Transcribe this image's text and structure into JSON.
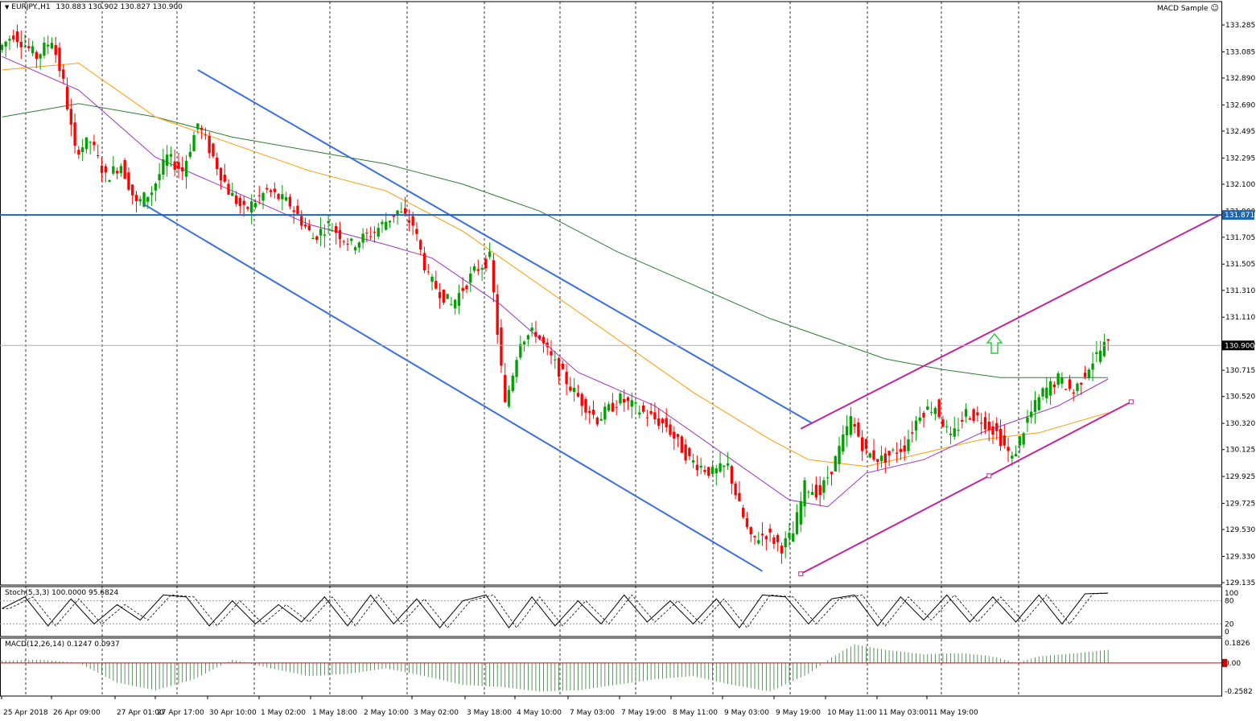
{
  "header": {
    "symbol": "EURJPY.,H1",
    "ohlc": "130.883 130.902 130.827 130.900",
    "expert": "MACD Sample"
  },
  "stoch": {
    "label": "Stoch(5,3,3) 100.0000 95.6824",
    "levels": [
      "100",
      "80",
      "20",
      "0"
    ]
  },
  "macd": {
    "label": "MACD(12,26,14) 0.1247 0.0937",
    "levels": [
      "0.1826",
      "0.00",
      "-0.2582"
    ]
  },
  "colors": {
    "bull": "#00a000",
    "bear": "#ff0000",
    "channel_down": "#3b6fe0",
    "channel_up": "#c0259a",
    "resistance": "#1c64b4",
    "ma_fast": "#9933cc",
    "ma_mid": "#ff9900",
    "ma_slow": "#2e7d32",
    "arrow": "#2ecc40"
  },
  "chart_data": {
    "type": "candlestick",
    "symbol": "EURJPY",
    "timeframe": "H1",
    "ylim": [
      129.135,
      133.285
    ],
    "y_ticks": [
      "133.285",
      "133.085",
      "132.890",
      "132.690",
      "132.495",
      "132.295",
      "132.100",
      "131.900",
      "131.705",
      "131.505",
      "131.310",
      "131.110",
      "130.910",
      "130.715",
      "130.520",
      "130.320",
      "130.125",
      "129.925",
      "129.725",
      "129.530",
      "129.330",
      "129.135"
    ],
    "x_ticks": [
      "25 Apr 2018",
      "26 Apr 09:00",
      "27 Apr 01:00",
      "27 Apr 17:00",
      "30 Apr 10:00",
      "1 May 02:00",
      "1 May 18:00",
      "2 May 10:00",
      "3 May 02:00",
      "3 May 18:00",
      "4 May 10:00",
      "7 May 03:00",
      "7 May 19:00",
      "8 May 11:00",
      "9 May 03:00",
      "9 May 19:00",
      "10 May 11:00",
      "11 May 03:00",
      "11 May 19:00"
    ],
    "price_marks": [
      {
        "label": "131.871",
        "value": 131.871,
        "kind": "resistance"
      },
      {
        "label": "130.900",
        "value": 130.9,
        "kind": "current"
      }
    ],
    "path_points": [
      [
        0,
        133.1
      ],
      [
        4,
        133.22
      ],
      [
        10,
        133.05
      ],
      [
        14,
        133.18
      ],
      [
        17,
        132.85
      ],
      [
        20,
        132.35
      ],
      [
        24,
        132.42
      ],
      [
        28,
        132.15
      ],
      [
        32,
        132.25
      ],
      [
        36,
        131.95
      ],
      [
        40,
        132.05
      ],
      [
        44,
        132.3
      ],
      [
        48,
        132.2
      ],
      [
        52,
        132.55
      ],
      [
        56,
        132.3
      ],
      [
        60,
        132.05
      ],
      [
        64,
        131.9
      ],
      [
        70,
        132.05
      ],
      [
        76,
        131.95
      ],
      [
        82,
        131.7
      ],
      [
        86,
        131.8
      ],
      [
        92,
        131.65
      ],
      [
        98,
        131.75
      ],
      [
        104,
        131.9
      ],
      [
        108,
        131.8
      ],
      [
        112,
        131.4
      ],
      [
        118,
        131.2
      ],
      [
        124,
        131.45
      ],
      [
        128,
        131.55
      ],
      [
        132,
        130.45
      ],
      [
        136,
        130.95
      ],
      [
        140,
        131.0
      ],
      [
        144,
        130.8
      ],
      [
        150,
        130.55
      ],
      [
        156,
        130.35
      ],
      [
        162,
        130.5
      ],
      [
        168,
        130.4
      ],
      [
        174,
        130.3
      ],
      [
        180,
        130.05
      ],
      [
        186,
        129.95
      ],
      [
        190,
        130.0
      ],
      [
        193,
        129.7
      ],
      [
        196,
        129.45
      ],
      [
        200,
        129.5
      ],
      [
        204,
        129.4
      ],
      [
        207,
        129.5
      ],
      [
        210,
        129.85
      ],
      [
        214,
        129.8
      ],
      [
        218,
        130.05
      ],
      [
        222,
        130.35
      ],
      [
        226,
        130.1
      ],
      [
        230,
        130.05
      ],
      [
        236,
        130.15
      ],
      [
        240,
        130.4
      ],
      [
        244,
        130.45
      ],
      [
        248,
        130.2
      ],
      [
        252,
        130.4
      ],
      [
        256,
        130.35
      ],
      [
        260,
        130.25
      ],
      [
        264,
        130.05
      ],
      [
        268,
        130.35
      ],
      [
        272,
        130.55
      ],
      [
        276,
        130.65
      ],
      [
        280,
        130.55
      ],
      [
        284,
        130.75
      ],
      [
        288,
        130.9
      ]
    ],
    "ma_fast": [
      [
        0,
        133.05
      ],
      [
        20,
        132.8
      ],
      [
        40,
        132.3
      ],
      [
        60,
        132.05
      ],
      [
        80,
        131.8
      ],
      [
        100,
        131.65
      ],
      [
        112,
        131.55
      ],
      [
        130,
        131.2
      ],
      [
        150,
        130.7
      ],
      [
        170,
        130.45
      ],
      [
        190,
        130.05
      ],
      [
        205,
        129.75
      ],
      [
        215,
        129.7
      ],
      [
        225,
        129.95
      ],
      [
        240,
        130.05
      ],
      [
        255,
        130.25
      ],
      [
        265,
        130.35
      ],
      [
        275,
        130.45
      ],
      [
        288,
        130.65
      ]
    ],
    "ma_mid": [
      [
        0,
        132.95
      ],
      [
        20,
        133.0
      ],
      [
        40,
        132.6
      ],
      [
        60,
        132.4
      ],
      [
        80,
        132.2
      ],
      [
        100,
        132.05
      ],
      [
        120,
        131.75
      ],
      [
        140,
        131.35
      ],
      [
        160,
        130.95
      ],
      [
        180,
        130.55
      ],
      [
        200,
        130.2
      ],
      [
        210,
        130.05
      ],
      [
        225,
        130.0
      ],
      [
        240,
        130.1
      ],
      [
        255,
        130.2
      ],
      [
        270,
        130.25
      ],
      [
        288,
        130.4
      ]
    ],
    "ma_slow": [
      [
        0,
        132.6
      ],
      [
        20,
        132.7
      ],
      [
        40,
        132.6
      ],
      [
        60,
        132.45
      ],
      [
        80,
        132.35
      ],
      [
        100,
        132.25
      ],
      [
        120,
        132.1
      ],
      [
        140,
        131.9
      ],
      [
        160,
        131.6
      ],
      [
        180,
        131.35
      ],
      [
        200,
        131.1
      ],
      [
        215,
        130.95
      ],
      [
        230,
        130.8
      ],
      [
        245,
        130.72
      ],
      [
        260,
        130.66
      ],
      [
        275,
        130.66
      ],
      [
        288,
        130.66
      ]
    ],
    "trendlines": [
      {
        "name": "falling-channel-upper",
        "from": [
          51,
          132.95
        ],
        "to": [
          211,
          130.32
        ]
      },
      {
        "name": "falling-channel-lower",
        "from": [
          37,
          131.95
        ],
        "to": [
          198,
          129.22
        ]
      },
      {
        "name": "rising-channel-upper",
        "from": [
          208,
          130.28
        ],
        "to": [
          317,
          131.87
        ]
      },
      {
        "name": "rising-channel-lower",
        "from": [
          208,
          129.2
        ],
        "to": [
          294,
          130.48
        ]
      }
    ],
    "stoch_series": [
      [
        0,
        60
      ],
      [
        6,
        90
      ],
      [
        12,
        15
      ],
      [
        18,
        85
      ],
      [
        24,
        20
      ],
      [
        30,
        70
      ],
      [
        36,
        30
      ],
      [
        42,
        95
      ],
      [
        48,
        90
      ],
      [
        54,
        15
      ],
      [
        60,
        80
      ],
      [
        66,
        20
      ],
      [
        72,
        70
      ],
      [
        78,
        25
      ],
      [
        84,
        90
      ],
      [
        90,
        15
      ],
      [
        96,
        95
      ],
      [
        102,
        20
      ],
      [
        108,
        85
      ],
      [
        114,
        10
      ],
      [
        120,
        80
      ],
      [
        126,
        95
      ],
      [
        132,
        10
      ],
      [
        138,
        90
      ],
      [
        144,
        15
      ],
      [
        150,
        80
      ],
      [
        156,
        20
      ],
      [
        162,
        95
      ],
      [
        168,
        25
      ],
      [
        174,
        80
      ],
      [
        180,
        20
      ],
      [
        186,
        85
      ],
      [
        192,
        10
      ],
      [
        198,
        95
      ],
      [
        204,
        90
      ],
      [
        210,
        20
      ],
      [
        216,
        85
      ],
      [
        222,
        95
      ],
      [
        228,
        15
      ],
      [
        234,
        90
      ],
      [
        240,
        30
      ],
      [
        246,
        95
      ],
      [
        252,
        25
      ],
      [
        258,
        90
      ],
      [
        264,
        25
      ],
      [
        270,
        95
      ],
      [
        276,
        20
      ],
      [
        282,
        98
      ],
      [
        288,
        100
      ]
    ],
    "macd_hist": [
      [
        0,
        0.02
      ],
      [
        10,
        0.03
      ],
      [
        20,
        0.0
      ],
      [
        30,
        -0.18
      ],
      [
        40,
        -0.25
      ],
      [
        50,
        -0.15
      ],
      [
        60,
        0.03
      ],
      [
        70,
        -0.05
      ],
      [
        80,
        -0.12
      ],
      [
        90,
        -0.1
      ],
      [
        100,
        -0.05
      ],
      [
        110,
        -0.12
      ],
      [
        120,
        -0.2
      ],
      [
        130,
        -0.22
      ],
      [
        140,
        -0.26
      ],
      [
        150,
        -0.25
      ],
      [
        160,
        -0.2
      ],
      [
        170,
        -0.15
      ],
      [
        180,
        -0.12
      ],
      [
        190,
        -0.2
      ],
      [
        200,
        -0.26
      ],
      [
        210,
        -0.1
      ],
      [
        216,
        0.05
      ],
      [
        222,
        0.17
      ],
      [
        230,
        0.12
      ],
      [
        240,
        0.08
      ],
      [
        250,
        0.09
      ],
      [
        258,
        0.06
      ],
      [
        264,
        0.0
      ],
      [
        270,
        0.06
      ],
      [
        280,
        0.09
      ],
      [
        288,
        0.12
      ]
    ]
  }
}
